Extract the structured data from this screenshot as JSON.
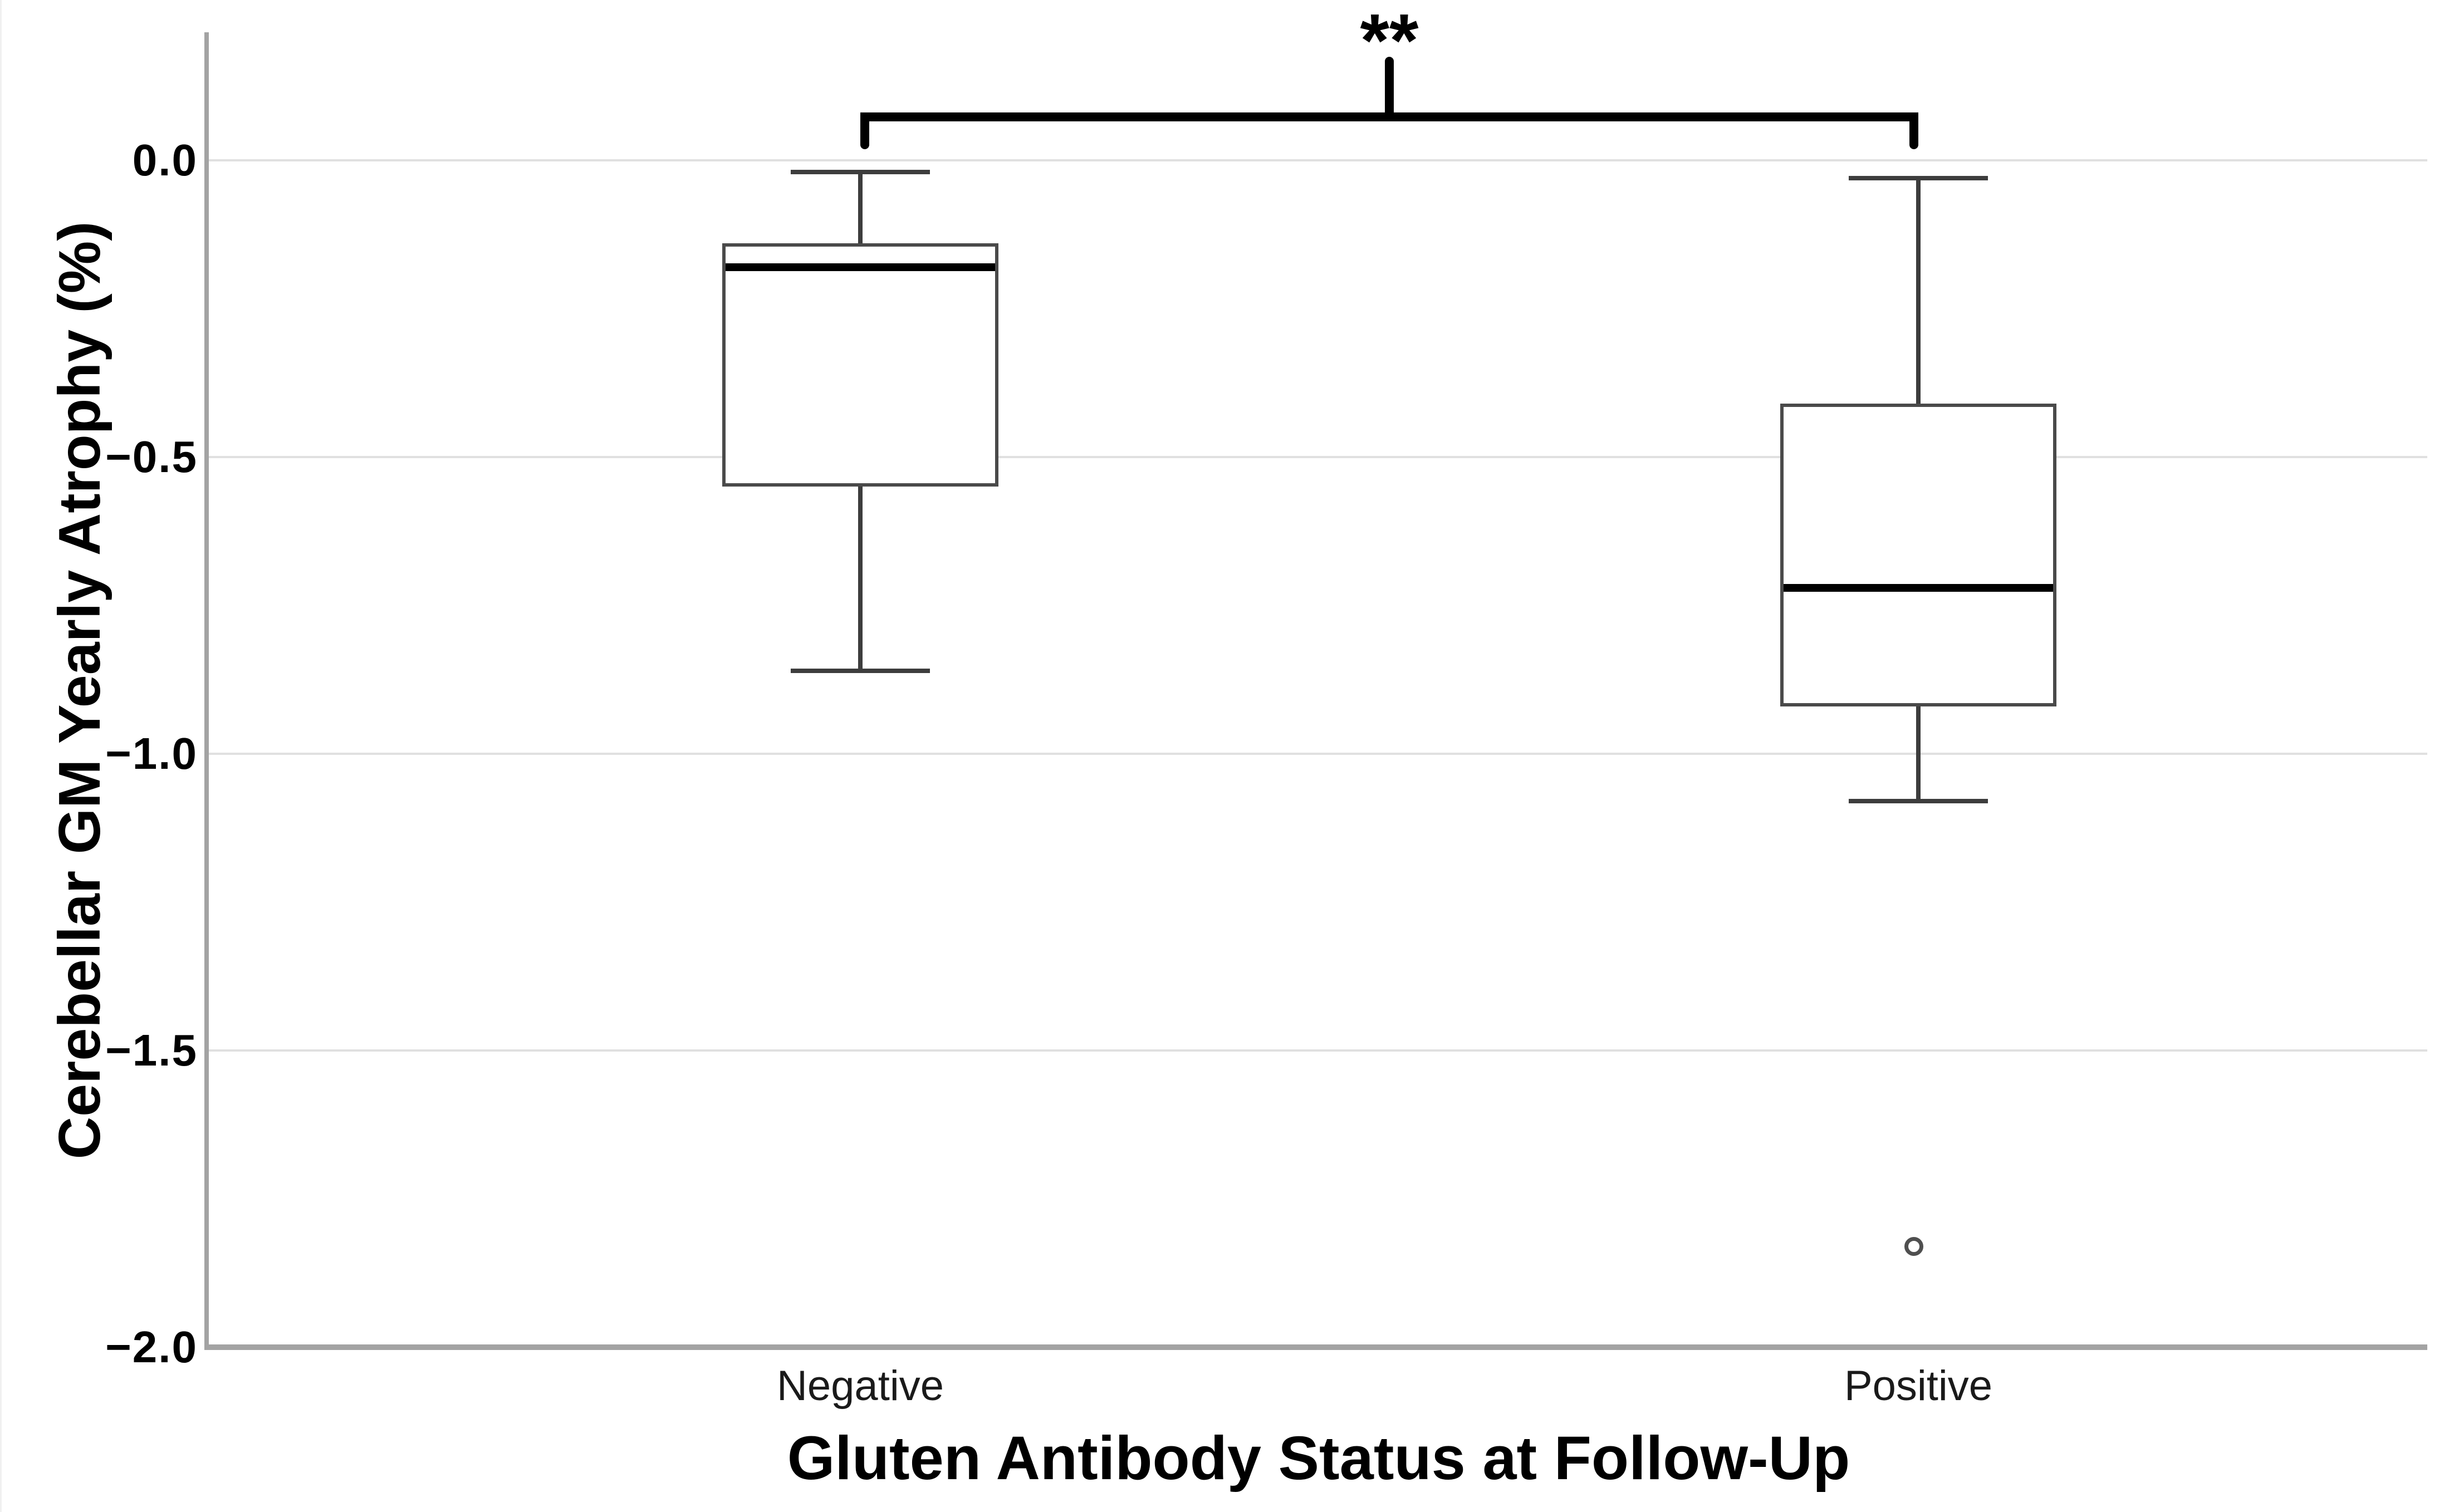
{
  "chart_data": {
    "type": "boxplot",
    "title": "",
    "xlabel": "Gluten Antibody Status at Follow-Up",
    "ylabel": "Cerebellar GM Yearly Atrophy (%)",
    "categories": [
      "Negative",
      "Positive"
    ],
    "y_ticks": [
      {
        "label": "0.0",
        "value": 0.0
      },
      {
        "label": "−0.5",
        "value": -0.5
      },
      {
        "label": "−1.0",
        "value": -1.0
      },
      {
        "label": "−1.5",
        "value": -1.5
      },
      {
        "label": "−2.0",
        "value": -2.0
      }
    ],
    "ylim": [
      -2.0,
      0.22
    ],
    "grid": "horizontal",
    "legend": "none",
    "boxes": [
      {
        "category": "Negative",
        "whisker_low": -0.86,
        "q1": -0.55,
        "median": -0.18,
        "q3": -0.14,
        "whisker_high": -0.02,
        "outliers": []
      },
      {
        "category": "Positive",
        "whisker_low": -1.08,
        "q1": -0.92,
        "median": -0.72,
        "q3": -0.41,
        "whisker_high": -0.03,
        "outliers": [
          -1.83
        ]
      }
    ],
    "significance": {
      "label": "**",
      "between": [
        "Negative",
        "Positive"
      ]
    },
    "colors": {
      "box_border": "#4a4a4a",
      "median": "#000000",
      "whisker": "#3d3d3d",
      "gridline": "#e0e0e0",
      "axis": "#a3a3a3",
      "bracket": "#000000",
      "background": "#ffffff",
      "text": "#000000"
    }
  }
}
